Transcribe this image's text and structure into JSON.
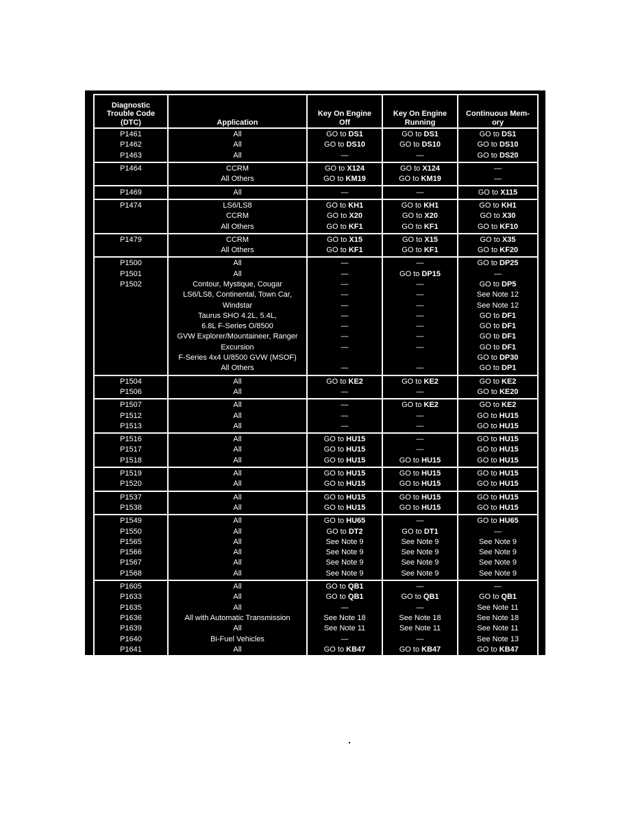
{
  "headers": [
    "Diagnostic\nTrouble Code\n(DTC)",
    "Application",
    "Key On Engine\nOff",
    "Key On Engine\nRunning",
    "Continuous Mem-\nory"
  ],
  "groups": [
    [
      [
        "P1461",
        "All",
        [
          "GO to",
          "DS1"
        ],
        [
          "GO to",
          "DS1"
        ],
        [
          "GO to",
          "DS1"
        ]
      ],
      [
        "P1462",
        "All",
        [
          "GO to",
          "DS10"
        ],
        [
          "GO to",
          "DS10"
        ],
        [
          "GO to",
          "DS10"
        ]
      ],
      [
        "P1463",
        "All",
        "—",
        "—",
        [
          "GO to",
          "DS20"
        ]
      ]
    ],
    [
      [
        "P1464",
        "CCRM",
        [
          "GO to",
          "X124"
        ],
        [
          "GO to",
          "X124"
        ],
        "—"
      ],
      [
        "",
        "All Others",
        [
          "GO to",
          "KM19"
        ],
        [
          "GO to",
          "KM19"
        ],
        "—"
      ]
    ],
    [
      [
        "P1469",
        "All",
        "—",
        "—",
        [
          "GO to",
          "X115"
        ]
      ]
    ],
    [
      [
        "P1474",
        "LS6/LS8",
        [
          "GO to",
          "KH1"
        ],
        [
          "GO to",
          "KH1"
        ],
        [
          "GO to",
          "KH1"
        ]
      ],
      [
        "",
        "CCRM",
        [
          "GO to",
          "X20"
        ],
        [
          "GO to",
          "X20"
        ],
        [
          "GO to",
          "X30"
        ]
      ],
      [
        "",
        "All Others",
        [
          "GO to",
          "KF1"
        ],
        [
          "GO to",
          "KF1"
        ],
        [
          "GO to",
          "KF10"
        ]
      ]
    ],
    [
      [
        "P1479",
        "CCRM",
        [
          "GO to",
          "X15"
        ],
        [
          "GO to",
          "X15"
        ],
        [
          "GO to",
          "X35"
        ]
      ],
      [
        "",
        "All Others",
        [
          "GO to",
          "KF1"
        ],
        [
          "GO to",
          "KF1"
        ],
        [
          "GO to",
          "KF20"
        ]
      ]
    ],
    [
      [
        "P1500",
        "All",
        "—",
        "—",
        [
          "GO to",
          "DP25"
        ]
      ],
      [
        "P1501",
        "All",
        "—",
        [
          "GO to",
          "DP15"
        ],
        "—"
      ],
      [
        "P1502",
        "Contour, Mystique, Cougar",
        "—",
        "—",
        [
          "GO to",
          "DP5"
        ]
      ],
      [
        "",
        "LS6/LS8, Continental, Town Car,",
        "—",
        "—",
        "See Note 12"
      ],
      [
        "",
        "Windstar",
        "—",
        "—",
        "See Note 12"
      ],
      [
        "",
        "Taurus SHO 4.2L, 5.4L,",
        "—",
        "—",
        [
          "GO to",
          "DF1"
        ]
      ],
      [
        "",
        "6.8L F-Series O/8500",
        "—",
        "—",
        [
          "GO to",
          "DF1"
        ]
      ],
      [
        "",
        "GVW Explorer/Mountaineer, Ranger",
        "—",
        "—",
        [
          "GO to",
          "DF1"
        ]
      ],
      [
        "",
        "Excursion",
        "—",
        "—",
        [
          "GO to",
          "DF1"
        ]
      ],
      [
        "",
        "F-Series 4x4 U/8500 GVW (MSOF)",
        "",
        "",
        [
          "GO to",
          "DP30"
        ]
      ],
      [
        "",
        "All Others",
        "—",
        "—",
        [
          "GO to",
          "DP1"
        ]
      ]
    ],
    [
      [
        "P1504",
        "All",
        [
          "GO to",
          "KE2"
        ],
        [
          "GO to",
          "KE2"
        ],
        [
          "GO to",
          "KE2"
        ]
      ],
      [
        "P1506",
        "All",
        "—",
        "—",
        [
          "GO to",
          "KE20"
        ]
      ]
    ],
    [
      [
        "P1507",
        "All",
        "—",
        [
          "GO to",
          "KE2"
        ],
        [
          "GO to",
          "KE2"
        ]
      ],
      [
        "P1512",
        "All",
        "—",
        "—",
        [
          "GO to",
          "HU15"
        ]
      ],
      [
        "P1513",
        "All",
        "—",
        "—",
        [
          "GO to",
          "HU15"
        ]
      ]
    ],
    [
      [
        "P1516",
        "All",
        [
          "GO to",
          "HU15"
        ],
        "—",
        [
          "GO to",
          "HU15"
        ]
      ],
      [
        "P1517",
        "All",
        [
          "GO to",
          "HU15"
        ],
        "—",
        [
          "GO to",
          "HU15"
        ]
      ],
      [
        "P1518",
        "All",
        [
          "GO to",
          "HU15"
        ],
        [
          "GO to",
          "HU15"
        ],
        [
          "GO to",
          "HU15"
        ]
      ]
    ],
    [
      [
        "P1519",
        "All",
        [
          "GO to",
          "HU15"
        ],
        [
          "GO to",
          "HU15"
        ],
        [
          "GO to",
          "HU15"
        ]
      ],
      [
        "P1520",
        "All",
        [
          "GO to",
          "HU15"
        ],
        [
          "GO to",
          "HU15"
        ],
        [
          "GO to",
          "HU15"
        ]
      ]
    ],
    [
      [
        "P1537",
        "All",
        [
          "GO to",
          "HU15"
        ],
        [
          "GO to",
          "HU15"
        ],
        [
          "GO to",
          "HU15"
        ]
      ],
      [
        "P1538",
        "All",
        [
          "GO to",
          "HU15"
        ],
        [
          "GO to",
          "HU15"
        ],
        [
          "GO to",
          "HU15"
        ]
      ]
    ],
    [
      [
        "P1549",
        "All",
        [
          "GO to",
          "HU65"
        ],
        "—",
        [
          "GO to",
          "HU65"
        ]
      ],
      [
        "P1550",
        "All",
        [
          "GO to",
          "DT2"
        ],
        [
          "GO to",
          "DT1"
        ],
        "—"
      ],
      [
        "P1565",
        "All",
        "See Note 9",
        "See Note 9",
        "See Note 9"
      ],
      [
        "P1566",
        "All",
        "See Note 9",
        "See Note 9",
        "See Note 9"
      ],
      [
        "P1567",
        "All",
        "See Note 9",
        "See Note 9",
        "See Note 9"
      ],
      [
        "P1568",
        "All",
        "See Note 9",
        "See Note 9",
        "See Note 9"
      ]
    ],
    [
      [
        "P1605",
        "All",
        [
          "GO to",
          "QB1"
        ],
        "—",
        "—"
      ],
      [
        "P1633",
        "All",
        [
          "GO to",
          "QB1"
        ],
        [
          "GO to",
          "QB1"
        ],
        [
          "GO to",
          "QB1"
        ]
      ],
      [
        "P1635",
        "All",
        "—",
        "—",
        "See Note 11"
      ],
      [
        "P1636",
        "All with Automatic Transmission",
        "See Note 18",
        "See Note 18",
        "See Note 18"
      ],
      [
        "P1639",
        "All",
        "See Note 11",
        "See Note 11",
        "See Note 11"
      ],
      [
        "P1640",
        "Bi-Fuel Vehicles",
        "—",
        "—",
        "See Note 13"
      ],
      [
        "P1641",
        "All",
        [
          "GO to",
          "KB47"
        ],
        [
          "GO to",
          "KB47"
        ],
        [
          "GO to",
          "KB47"
        ]
      ]
    ]
  ]
}
